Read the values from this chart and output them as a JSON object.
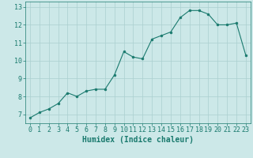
{
  "x": [
    0,
    1,
    2,
    3,
    4,
    5,
    6,
    7,
    8,
    9,
    10,
    11,
    12,
    13,
    14,
    15,
    16,
    17,
    18,
    19,
    20,
    21,
    22,
    23
  ],
  "y": [
    6.8,
    7.1,
    7.3,
    7.6,
    8.2,
    8.0,
    8.3,
    8.4,
    8.4,
    9.2,
    10.5,
    10.2,
    10.1,
    11.2,
    11.4,
    11.6,
    12.4,
    12.8,
    12.8,
    12.6,
    12.0,
    12.0,
    12.1,
    10.3
  ],
  "line_color": "#1a7a6e",
  "marker_color": "#1a7a6e",
  "bg_color": "#cce8e8",
  "grid_color": "#aacfcf",
  "xlabel": "Humidex (Indice chaleur)",
  "ylim": [
    6.5,
    13.3
  ],
  "xlim": [
    -0.5,
    23.5
  ],
  "yticks": [
    7,
    8,
    9,
    10,
    11,
    12,
    13
  ],
  "xticks": [
    0,
    1,
    2,
    3,
    4,
    5,
    6,
    7,
    8,
    9,
    10,
    11,
    12,
    13,
    14,
    15,
    16,
    17,
    18,
    19,
    20,
    21,
    22,
    23
  ],
  "tick_color": "#1a7a6e",
  "label_color": "#1a7a6e",
  "font_size": 6,
  "label_font_size": 7
}
